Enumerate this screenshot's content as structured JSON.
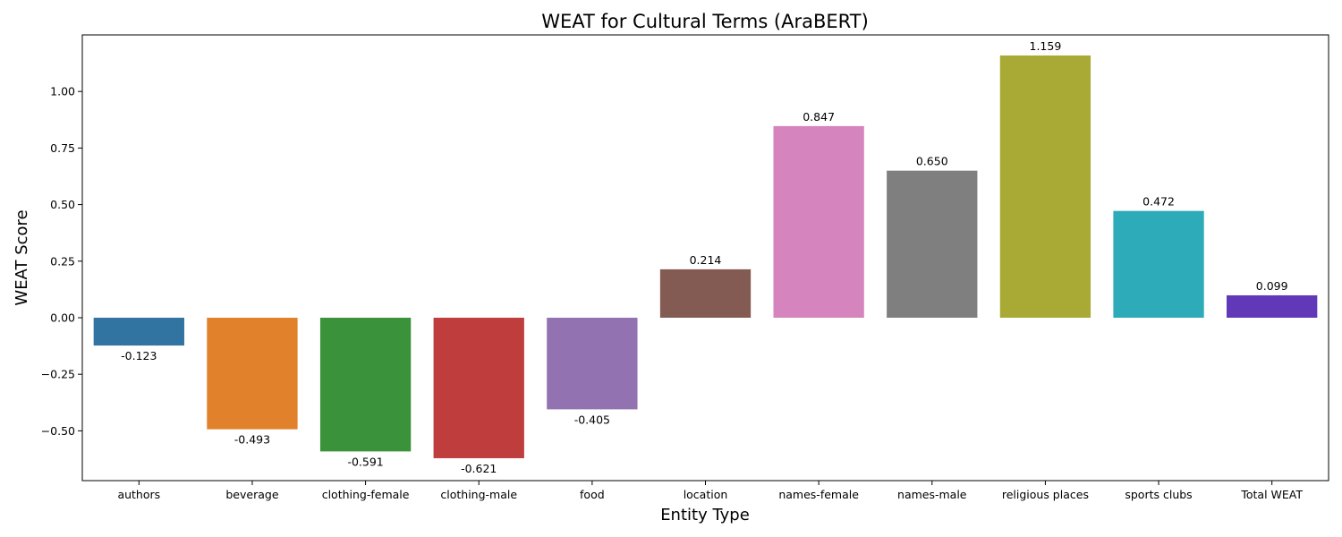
{
  "chart_data": {
    "type": "bar",
    "title": "WEAT for Cultural Terms (AraBERT)",
    "xlabel": "Entity Type",
    "ylabel": "WEAT Score",
    "ylim": [
      -0.72,
      1.25
    ],
    "yticks": [
      -0.5,
      -0.25,
      0.0,
      0.25,
      0.5,
      0.75,
      1.0
    ],
    "ytick_labels": [
      "−0.50",
      "−0.25",
      "0.00",
      "0.25",
      "0.50",
      "0.75",
      "1.00"
    ],
    "grid": false,
    "categories": [
      "authors",
      "beverage",
      "clothing-female",
      "clothing-male",
      "food",
      "location",
      "names-female",
      "names-male",
      "religious places",
      "sports clubs",
      "Total WEAT"
    ],
    "values": [
      -0.123,
      -0.493,
      -0.591,
      -0.621,
      -0.405,
      0.214,
      0.847,
      0.65,
      1.159,
      0.472,
      0.099
    ],
    "value_labels": [
      "-0.123",
      "-0.493",
      "-0.591",
      "-0.621",
      "-0.405",
      "0.214",
      "0.847",
      "0.650",
      "1.159",
      "0.472",
      "0.099"
    ],
    "colors": [
      "#3274a1",
      "#e1812c",
      "#3a923a",
      "#c03d3e",
      "#9372b2",
      "#845b53",
      "#d684bd",
      "#7f7f7f",
      "#a9aa35",
      "#2eabb8",
      "#6038b8"
    ]
  }
}
